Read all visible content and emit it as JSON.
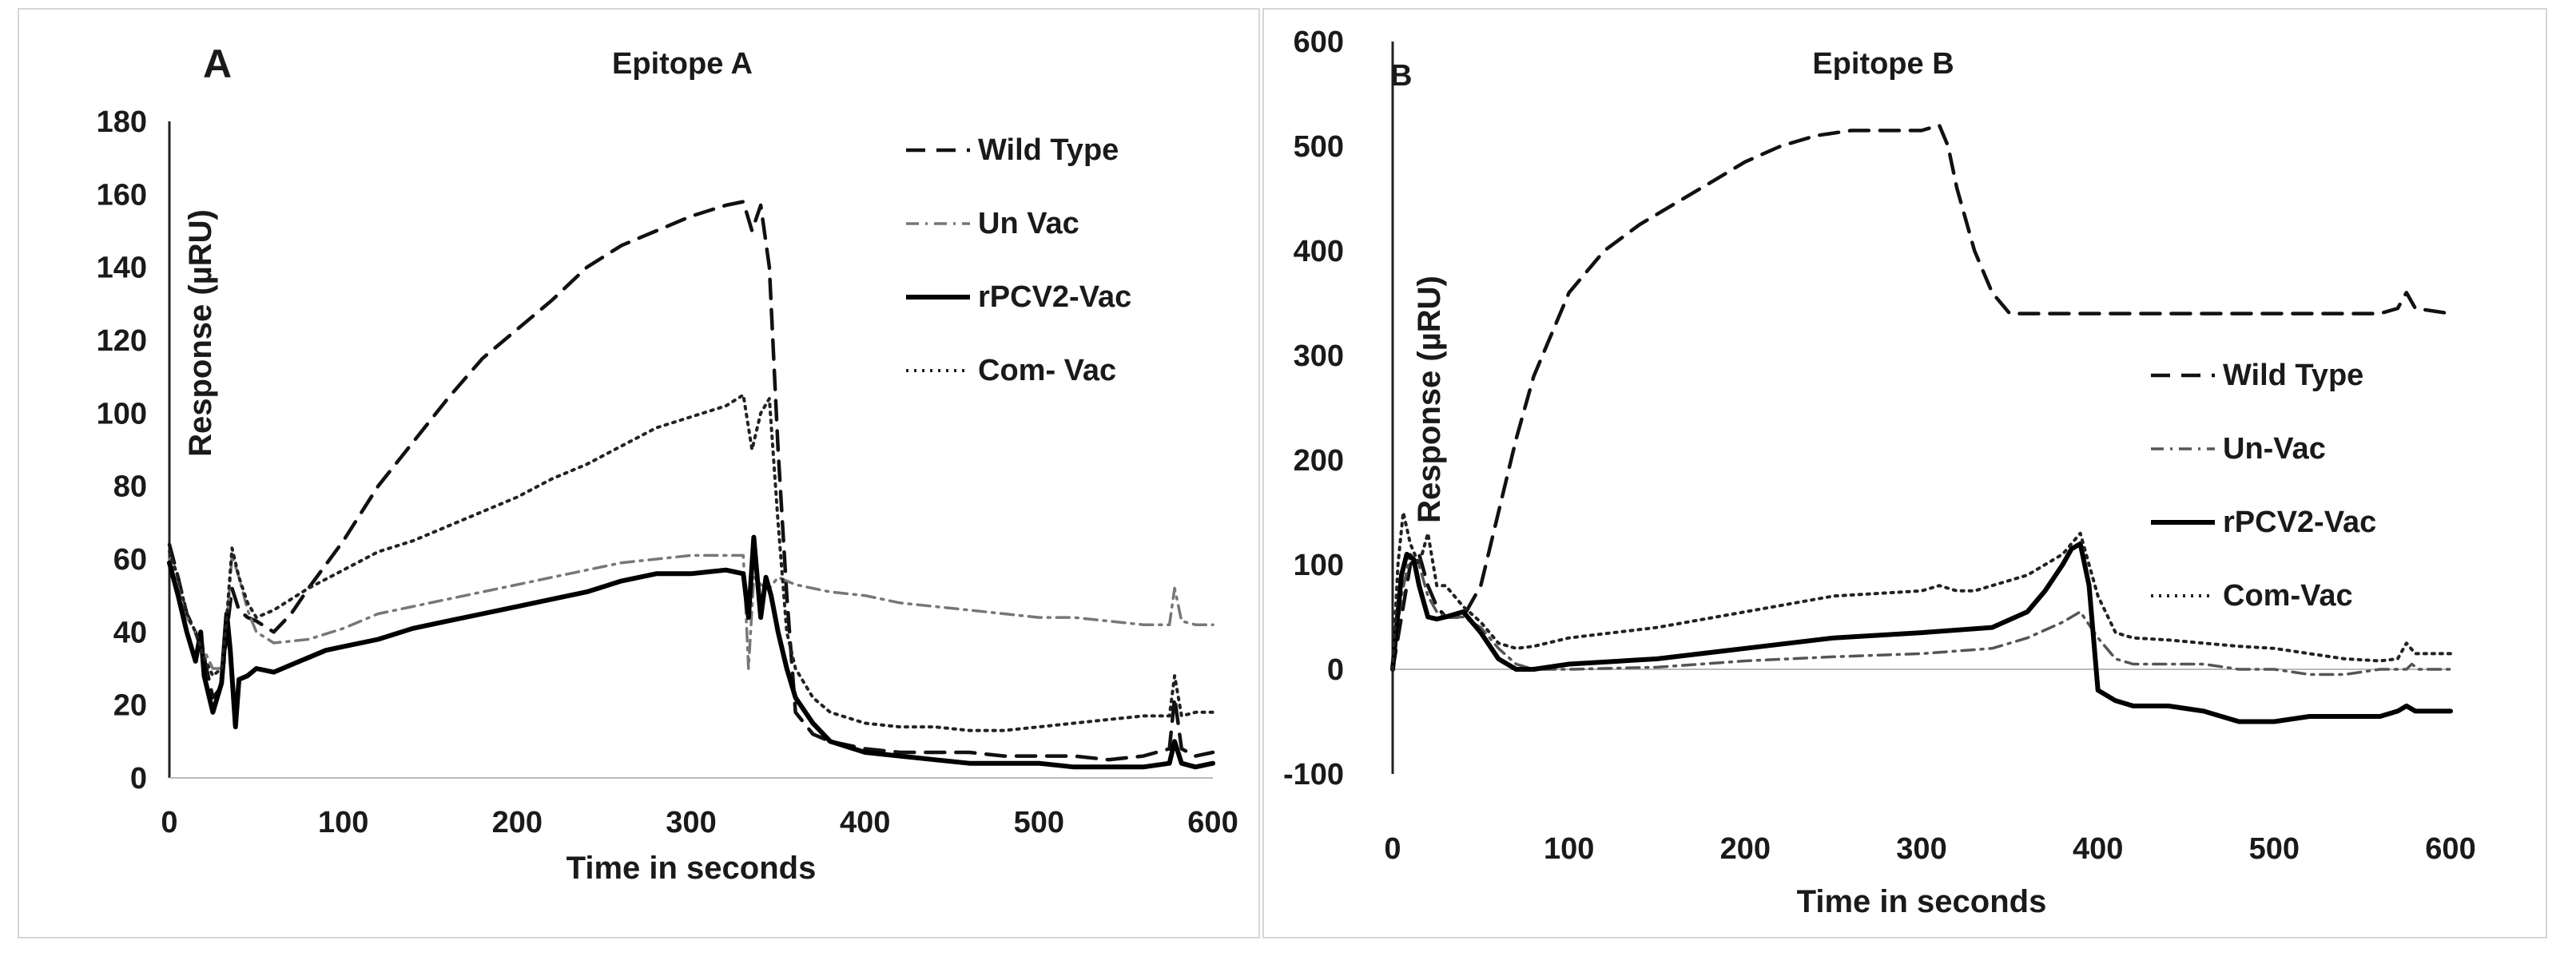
{
  "figure": {
    "chart_data": [
      {
        "type": "line",
        "panel_label": "A",
        "title": "Epitope A",
        "xlabel": "Time in seconds",
        "ylabel": "Response (µRU)",
        "xlim": [
          0,
          600
        ],
        "ylim": [
          0,
          180
        ],
        "xticks": [
          0,
          100,
          200,
          300,
          400,
          500,
          600
        ],
        "yticks": [
          0,
          20,
          40,
          60,
          80,
          100,
          120,
          140,
          160,
          180
        ],
        "grid": false,
        "legend_position": "top-right",
        "series": [
          {
            "name": "Wild Type",
            "style": "dashed",
            "color": "#111111",
            "x": [
              0,
              5,
              10,
              15,
              20,
              25,
              30,
              33,
              36,
              40,
              45,
              50,
              60,
              70,
              80,
              100,
              120,
              140,
              160,
              180,
              200,
              220,
              240,
              260,
              280,
              300,
              320,
              330,
              335,
              340,
              345,
              350,
              355,
              360,
              370,
              380,
              400,
              420,
              440,
              460,
              480,
              500,
              520,
              540,
              560,
              575,
              578,
              582,
              590,
              600
            ],
            "y": [
              64,
              55,
              45,
              40,
              33,
              22,
              25,
              40,
              52,
              46,
              44,
              43,
              40,
              45,
              52,
              65,
              80,
              92,
              104,
              115,
              123,
              131,
              140,
              146,
              150,
              154,
              157,
              158,
              150,
              157,
              140,
              90,
              50,
              18,
              12,
              10,
              8,
              7,
              7,
              7,
              6,
              6,
              6,
              5,
              6,
              8,
              22,
              8,
              6,
              7
            ]
          },
          {
            "name": "Un Vac",
            "style": "dash-dot",
            "color": "#777777",
            "x": [
              0,
              5,
              10,
              15,
              20,
              25,
              30,
              33,
              36,
              40,
              45,
              50,
              60,
              80,
              100,
              120,
              140,
              160,
              180,
              200,
              220,
              240,
              260,
              280,
              300,
              320,
              330,
              333,
              336,
              340,
              345,
              350,
              360,
              380,
              400,
              420,
              440,
              460,
              480,
              500,
              520,
              540,
              560,
              570,
              575,
              578,
              582,
              590,
              600
            ],
            "y": [
              60,
              52,
              44,
              40,
              35,
              30,
              30,
              42,
              61,
              55,
              46,
              40,
              37,
              38,
              41,
              45,
              47,
              49,
              51,
              53,
              55,
              57,
              59,
              60,
              61,
              61,
              61,
              30,
              55,
              53,
              52,
              55,
              53,
              51,
              50,
              48,
              47,
              46,
              45,
              44,
              44,
              43,
              42,
              42,
              42,
              52,
              43,
              42,
              42
            ]
          },
          {
            "name": "rPCV2-Vac",
            "style": "solid",
            "color": "#000000",
            "x": [
              0,
              5,
              10,
              15,
              18,
              20,
              25,
              30,
              33,
              35,
              38,
              40,
              45,
              50,
              60,
              70,
              80,
              90,
              100,
              120,
              140,
              160,
              180,
              200,
              220,
              240,
              260,
              280,
              300,
              320,
              330,
              333,
              336,
              340,
              343,
              346,
              350,
              355,
              360,
              370,
              380,
              400,
              420,
              440,
              460,
              480,
              500,
              520,
              540,
              560,
              575,
              578,
              582,
              590,
              600
            ],
            "y": [
              59,
              50,
              40,
              32,
              40,
              28,
              18,
              26,
              45,
              35,
              14,
              27,
              28,
              30,
              29,
              31,
              33,
              35,
              36,
              38,
              41,
              43,
              45,
              47,
              49,
              51,
              54,
              56,
              56,
              57,
              56,
              44,
              66,
              44,
              55,
              50,
              40,
              30,
              22,
              15,
              10,
              7,
              6,
              5,
              4,
              4,
              4,
              3,
              3,
              3,
              4,
              10,
              4,
              3,
              4
            ]
          },
          {
            "name": "Com- Vac",
            "style": "dotted",
            "color": "#222222",
            "x": [
              0,
              5,
              10,
              15,
              20,
              25,
              30,
              33,
              36,
              40,
              45,
              50,
              60,
              80,
              100,
              120,
              140,
              160,
              180,
              200,
              220,
              240,
              260,
              280,
              300,
              320,
              330,
              335,
              340,
              345,
              350,
              355,
              360,
              370,
              380,
              400,
              420,
              440,
              460,
              480,
              500,
              520,
              540,
              560,
              575,
              578,
              582,
              590,
              600
            ],
            "y": [
              62,
              55,
              45,
              40,
              33,
              28,
              30,
              44,
              63,
              55,
              48,
              44,
              46,
              52,
              57,
              62,
              65,
              69,
              73,
              77,
              82,
              86,
              91,
              96,
              99,
              102,
              105,
              90,
              100,
              104,
              70,
              40,
              30,
              22,
              18,
              15,
              14,
              14,
              13,
              13,
              14,
              15,
              16,
              17,
              17,
              28,
              17,
              18,
              18
            ]
          }
        ]
      },
      {
        "type": "line",
        "panel_label": "B",
        "title": "Epitope B",
        "xlabel": "Time in seconds",
        "ylabel": "Response (µRU)",
        "xlim": [
          0,
          600
        ],
        "ylim": [
          -100,
          600
        ],
        "xticks": [
          0,
          100,
          200,
          300,
          400,
          500,
          600
        ],
        "yticks": [
          -100,
          0,
          100,
          200,
          300,
          400,
          500,
          600
        ],
        "grid": false,
        "legend_position": "right",
        "series": [
          {
            "name": "Wild Type",
            "style": "dashed",
            "color": "#111111",
            "x": [
              0,
              5,
              10,
              15,
              20,
              25,
              30,
              40,
              50,
              60,
              70,
              80,
              90,
              100,
              120,
              140,
              160,
              180,
              200,
              220,
              240,
              260,
              280,
              300,
              310,
              315,
              320,
              330,
              340,
              350,
              360,
              380,
              400,
              420,
              440,
              460,
              480,
              500,
              520,
              540,
              560,
              570,
              575,
              580,
              600
            ],
            "y": [
              0,
              50,
              100,
              110,
              80,
              60,
              50,
              50,
              80,
              150,
              220,
              280,
              320,
              360,
              400,
              425,
              445,
              465,
              485,
              500,
              510,
              515,
              515,
              515,
              520,
              500,
              460,
              400,
              360,
              340,
              340,
              340,
              340,
              340,
              340,
              340,
              340,
              340,
              340,
              340,
              340,
              345,
              360,
              345,
              340
            ]
          },
          {
            "name": "Un-Vac",
            "style": "dash-dot",
            "color": "#555555",
            "x": [
              0,
              5,
              10,
              15,
              20,
              25,
              30,
              40,
              50,
              60,
              70,
              80,
              100,
              150,
              200,
              250,
              300,
              340,
              360,
              380,
              390,
              400,
              410,
              420,
              440,
              460,
              480,
              500,
              520,
              540,
              560,
              575,
              578,
              582,
              600
            ],
            "y": [
              0,
              70,
              110,
              100,
              70,
              55,
              50,
              50,
              40,
              20,
              5,
              0,
              0,
              2,
              8,
              12,
              15,
              20,
              30,
              45,
              55,
              30,
              10,
              5,
              5,
              5,
              0,
              0,
              -5,
              -5,
              0,
              0,
              5,
              0,
              0
            ]
          },
          {
            "name": "rPCV2-Vac",
            "style": "solid",
            "color": "#000000",
            "x": [
              0,
              5,
              8,
              12,
              15,
              20,
              25,
              30,
              40,
              50,
              60,
              70,
              80,
              100,
              150,
              200,
              250,
              300,
              340,
              360,
              370,
              380,
              385,
              390,
              395,
              400,
              410,
              420,
              440,
              460,
              480,
              500,
              520,
              540,
              560,
              570,
              575,
              580,
              600
            ],
            "y": [
              0,
              90,
              110,
              105,
              80,
              50,
              48,
              50,
              55,
              35,
              10,
              0,
              0,
              5,
              10,
              20,
              30,
              35,
              40,
              55,
              75,
              100,
              115,
              120,
              80,
              -20,
              -30,
              -35,
              -35,
              -40,
              -50,
              -50,
              -45,
              -45,
              -45,
              -40,
              -35,
              -40,
              -40
            ]
          },
          {
            "name": "Com-Vac",
            "style": "dotted",
            "color": "#222222",
            "x": [
              0,
              3,
              6,
              10,
              15,
              20,
              25,
              30,
              40,
              50,
              60,
              70,
              80,
              100,
              150,
              200,
              250,
              300,
              310,
              320,
              330,
              340,
              360,
              380,
              390,
              395,
              400,
              410,
              420,
              440,
              460,
              480,
              500,
              520,
              540,
              560,
              570,
              575,
              580,
              600
            ],
            "y": [
              0,
              100,
              150,
              120,
              100,
              130,
              80,
              80,
              60,
              45,
              25,
              20,
              22,
              30,
              40,
              55,
              70,
              75,
              80,
              75,
              75,
              80,
              90,
              110,
              130,
              100,
              70,
              35,
              30,
              28,
              25,
              22,
              20,
              15,
              10,
              8,
              10,
              25,
              15,
              15
            ]
          }
        ]
      }
    ]
  }
}
